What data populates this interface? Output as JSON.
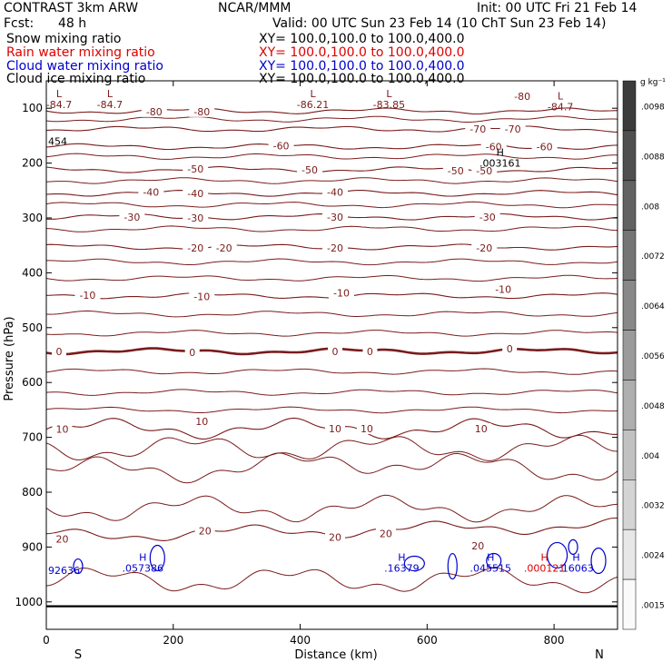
{
  "header": {
    "model": "CONTRAST  3km ARW",
    "org": "NCAR/MMM",
    "init": "Init: 00 UTC Fri 21 Feb 14",
    "fcst_label": "Fcst:",
    "fcst_value": "48 h",
    "valid": "Valid: 00 UTC Sun 23 Feb 14 (10 ChT Sun 23 Feb 14)"
  },
  "fields": [
    {
      "name": "Snow mixing ratio",
      "xy": "XY= 100.0,100.0 to 100.0,400.0",
      "color": "#000000"
    },
    {
      "name": "Rain water mixing ratio",
      "xy": "XY= 100.0,100.0 to 100.0,400.0",
      "color": "#dd0000"
    },
    {
      "name": "Cloud water mixing ratio",
      "xy": "XY= 100.0,100.0 to 100.0,400.0",
      "color": "#0000cc"
    },
    {
      "name": "Cloud ice mixing ratio",
      "xy": "XY= 100.0,100.0 to 100.0,400.0",
      "color": "#000000"
    }
  ],
  "chart_data": {
    "type": "contour",
    "xlabel": "Distance (km)",
    "ylabel": "Pressure (hPa)",
    "x_range": [
      0,
      900
    ],
    "x_ticks": [
      0,
      200,
      400,
      600,
      800
    ],
    "y_range": [
      1050,
      50
    ],
    "y_ticks": [
      100,
      200,
      300,
      400,
      500,
      600,
      700,
      800,
      900,
      1000
    ],
    "end_labels": {
      "left": "S",
      "right": "N"
    },
    "colorbar": {
      "unit": "g kg⁻¹",
      "labels": [
        ".0098",
        ".0088",
        ".008",
        ".0072",
        ".0064",
        ".0056",
        ".0048",
        ".004",
        ".0032",
        ".0024",
        ".0015"
      ]
    },
    "temperature_contours": [
      {
        "level": -80,
        "pressure": 105,
        "labels": [
          {
            "x": 170,
            "p": 106,
            "text": "-80"
          },
          {
            "x": 245,
            "p": 106,
            "text": "-80"
          },
          {
            "x": 750,
            "p": 78,
            "text": "-80"
          }
        ]
      },
      {
        "level": -70,
        "pressure": 138,
        "labels": [
          {
            "x": 680,
            "p": 138,
            "text": "-70"
          },
          {
            "x": 735,
            "p": 138,
            "text": "-70"
          }
        ]
      },
      {
        "level": -60,
        "pressure": 170,
        "labels": [
          {
            "x": 370,
            "p": 168,
            "text": "-60"
          },
          {
            "x": 705,
            "p": 170,
            "text": "-60"
          },
          {
            "x": 785,
            "p": 170,
            "text": "-60"
          }
        ]
      },
      {
        "level": -50,
        "pressure": 212,
        "labels": [
          {
            "x": 235,
            "p": 211,
            "text": "-50"
          },
          {
            "x": 415,
            "p": 212,
            "text": "-50"
          },
          {
            "x": 645,
            "p": 214,
            "text": "-50"
          },
          {
            "x": 690,
            "p": 214,
            "text": "-50"
          }
        ]
      },
      {
        "level": -40,
        "pressure": 255,
        "labels": [
          {
            "x": 165,
            "p": 253,
            "text": "-40"
          },
          {
            "x": 235,
            "p": 255,
            "text": "-40"
          },
          {
            "x": 455,
            "p": 253,
            "text": "-40"
          }
        ]
      },
      {
        "level": -30,
        "pressure": 298,
        "labels": [
          {
            "x": 135,
            "p": 298,
            "text": "-30"
          },
          {
            "x": 235,
            "p": 300,
            "text": "-30"
          },
          {
            "x": 455,
            "p": 298,
            "text": "-30"
          },
          {
            "x": 695,
            "p": 298,
            "text": "-30"
          }
        ]
      },
      {
        "level": -20,
        "pressure": 353,
        "labels": [
          {
            "x": 235,
            "p": 355,
            "text": "-20"
          },
          {
            "x": 280,
            "p": 355,
            "text": "-20"
          },
          {
            "x": 455,
            "p": 355,
            "text": "-20"
          },
          {
            "x": 690,
            "p": 355,
            "text": "-20"
          }
        ]
      },
      {
        "level": -10,
        "pressure": 442,
        "labels": [
          {
            "x": 65,
            "p": 441,
            "text": "-10"
          },
          {
            "x": 245,
            "p": 443,
            "text": "-10"
          },
          {
            "x": 465,
            "p": 437,
            "text": "-10"
          },
          {
            "x": 720,
            "p": 430,
            "text": "-10"
          }
        ]
      },
      {
        "level": 0,
        "pressure": 543,
        "labels": [
          {
            "x": 20,
            "p": 543,
            "text": "0"
          },
          {
            "x": 230,
            "p": 545,
            "text": "0"
          },
          {
            "x": 455,
            "p": 543,
            "text": "0"
          },
          {
            "x": 510,
            "p": 543,
            "text": "0"
          },
          {
            "x": 730,
            "p": 538,
            "text": "0"
          }
        ]
      },
      {
        "level": 10,
        "pressure": 684,
        "labels": [
          {
            "x": 25,
            "p": 685,
            "text": "10"
          },
          {
            "x": 245,
            "p": 671,
            "text": "10"
          },
          {
            "x": 455,
            "p": 684,
            "text": "10"
          },
          {
            "x": 505,
            "p": 684,
            "text": "10"
          },
          {
            "x": 685,
            "p": 684,
            "text": "10"
          }
        ]
      },
      {
        "level": 20,
        "pressure": 880,
        "labels": [
          {
            "x": 25,
            "p": 885,
            "text": "20"
          },
          {
            "x": 250,
            "p": 870,
            "text": "20"
          },
          {
            "x": 455,
            "p": 882,
            "text": "20"
          },
          {
            "x": 535,
            "p": 875,
            "text": "20"
          },
          {
            "x": 680,
            "p": 898,
            "text": "20"
          }
        ]
      }
    ],
    "extrema": [
      {
        "type": "L",
        "x": 20,
        "p": 80,
        "value": "-84.7",
        "color": "#7a1b1b"
      },
      {
        "type": "L",
        "x": 100,
        "p": 80,
        "value": "-84.7",
        "color": "#7a1b1b"
      },
      {
        "type": "L",
        "x": 420,
        "p": 80,
        "value": "-86.21",
        "color": "#7a1b1b"
      },
      {
        "type": "L",
        "x": 540,
        "p": 80,
        "value": "-83.85",
        "color": "#7a1b1b"
      },
      {
        "type": "L",
        "x": 810,
        "p": 84,
        "value": "-84.7",
        "color": "#7a1b1b"
      },
      {
        "type": "H",
        "x": 715,
        "p": 187,
        "value": ".003161",
        "color": "#000000"
      },
      {
        "type": "H",
        "x": 152,
        "p": 925,
        "value": ".057386",
        "color": "#0000cc"
      },
      {
        "type": "H",
        "x": 560,
        "p": 925,
        "value": ".16379",
        "color": "#0000cc"
      },
      {
        "type": "H",
        "x": 700,
        "p": 925,
        "value": ".045515",
        "color": "#0000cc"
      },
      {
        "type": "H",
        "x": 785,
        "p": 925,
        "value": ".000121",
        "color": "#dd0000"
      },
      {
        "type": "H",
        "x": 835,
        "p": 925,
        "value": ".16063",
        "color": "#0000cc"
      }
    ],
    "edge_values": [
      {
        "x": 0,
        "p": 942,
        "value": "92636",
        "color": "#0000cc"
      },
      {
        "x": 0,
        "p": 160,
        "value": "454",
        "color": "#000000"
      }
    ]
  }
}
